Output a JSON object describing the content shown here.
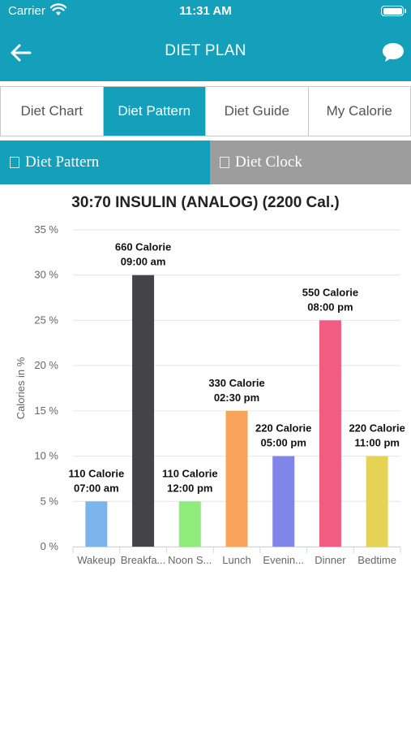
{
  "status_bar": {
    "carrier": "Carrier",
    "time": "11:31 AM"
  },
  "nav": {
    "title": "DIET PLAN",
    "back_icon": "arrow-left-icon",
    "chat_icon": "chat-bubble-icon"
  },
  "tabs": [
    {
      "label": "Diet Chart",
      "active": false
    },
    {
      "label": "Diet Pattern",
      "active": true
    },
    {
      "label": "Diet Guide",
      "active": false
    },
    {
      "label": "My Calorie",
      "active": false
    }
  ],
  "subtabs": [
    {
      "label": "Diet Pattern",
      "active": true
    },
    {
      "label": "Diet Clock",
      "active": false
    }
  ],
  "colors": {
    "accent": "#149fba",
    "inactive_subtab": "#9d9d9d"
  },
  "chart_data": {
    "type": "bar",
    "title": "30:70 INSULIN (ANALOG) (2200 Cal.)",
    "ylabel": "Calories in %",
    "ylim": [
      0,
      35
    ],
    "yticks": [
      0,
      5,
      10,
      15,
      20,
      25,
      30,
      35
    ],
    "ytick_labels": [
      "0 %",
      "5 %",
      "10 %",
      "15 %",
      "20 %",
      "25 %",
      "30 %",
      "35 %"
    ],
    "categories": [
      "Wakeup",
      "Breakfa...",
      "Noon S...",
      "Lunch",
      "Evenin...",
      "Dinner",
      "Bedtime"
    ],
    "values": [
      5,
      30,
      5,
      15,
      10,
      25,
      10
    ],
    "colors": [
      "#7cb5ec",
      "#434348",
      "#90ed7d",
      "#f7a35c",
      "#8085e9",
      "#f15c80",
      "#e4d354"
    ],
    "data_labels": [
      [
        "110 Calorie",
        "07:00 am"
      ],
      [
        "660 Calorie",
        "09:00 am"
      ],
      [
        "110 Calorie",
        "12:00 pm"
      ],
      [
        "330 Calorie",
        "02:30 pm"
      ],
      [
        "220 Calorie",
        "05:00 pm"
      ],
      [
        "550 Calorie",
        "08:00 pm"
      ],
      [
        "220 Calorie",
        "11:00 pm"
      ]
    ],
    "grid": true
  }
}
